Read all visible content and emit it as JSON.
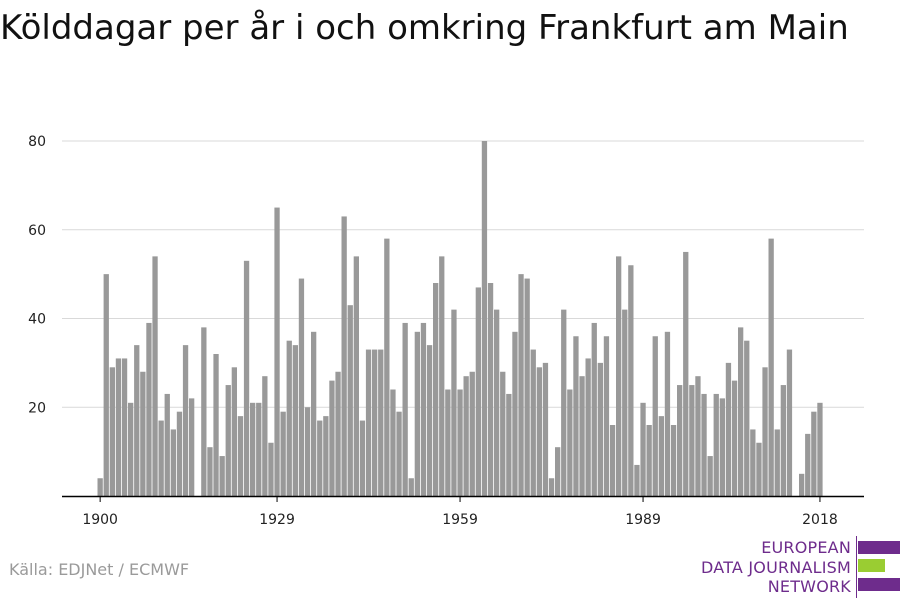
{
  "title": "Kölddagar per år i och omkring Frankfurt am Main",
  "source": "Källa: EDJNet / ECMWF",
  "logo": {
    "lines": [
      "EUROPEAN",
      "DATA JOURNALISM",
      "NETWORK"
    ],
    "colors": {
      "purple": "#6e2c8c",
      "green": "#9acd32"
    }
  },
  "colors": {
    "bar": "#999999",
    "grid": "#d9d9d9",
    "axis": "#000000"
  },
  "chart_data": {
    "type": "bar",
    "x_start": 1900,
    "x_end": 2018,
    "xticks": [
      1900,
      1929,
      1959,
      1989,
      2018
    ],
    "yticks": [
      20,
      40,
      60,
      80
    ],
    "ylim": [
      0,
      82
    ],
    "grid": true,
    "values": [
      4,
      50,
      29,
      31,
      31,
      21,
      34,
      28,
      39,
      54,
      17,
      23,
      15,
      19,
      34,
      22,
      0,
      38,
      11,
      32,
      9,
      25,
      29,
      18,
      53,
      21,
      21,
      27,
      12,
      65,
      19,
      35,
      34,
      49,
      20,
      37,
      17,
      18,
      26,
      28,
      63,
      43,
      54,
      17,
      33,
      33,
      33,
      58,
      24,
      19,
      39,
      4,
      37,
      39,
      34,
      48,
      54,
      24,
      42,
      24,
      27,
      28,
      47,
      80,
      48,
      42,
      28,
      23,
      37,
      50,
      49,
      33,
      29,
      30,
      4,
      11,
      42,
      24,
      36,
      27,
      31,
      39,
      30,
      36,
      16,
      54,
      42,
      52,
      7,
      21,
      16,
      36,
      18,
      37,
      16,
      25,
      55,
      25,
      27,
      23,
      9,
      23,
      22,
      30,
      26,
      38,
      35,
      15,
      12,
      29,
      58,
      15,
      25,
      33,
      0,
      5,
      14,
      19,
      21
    ]
  }
}
